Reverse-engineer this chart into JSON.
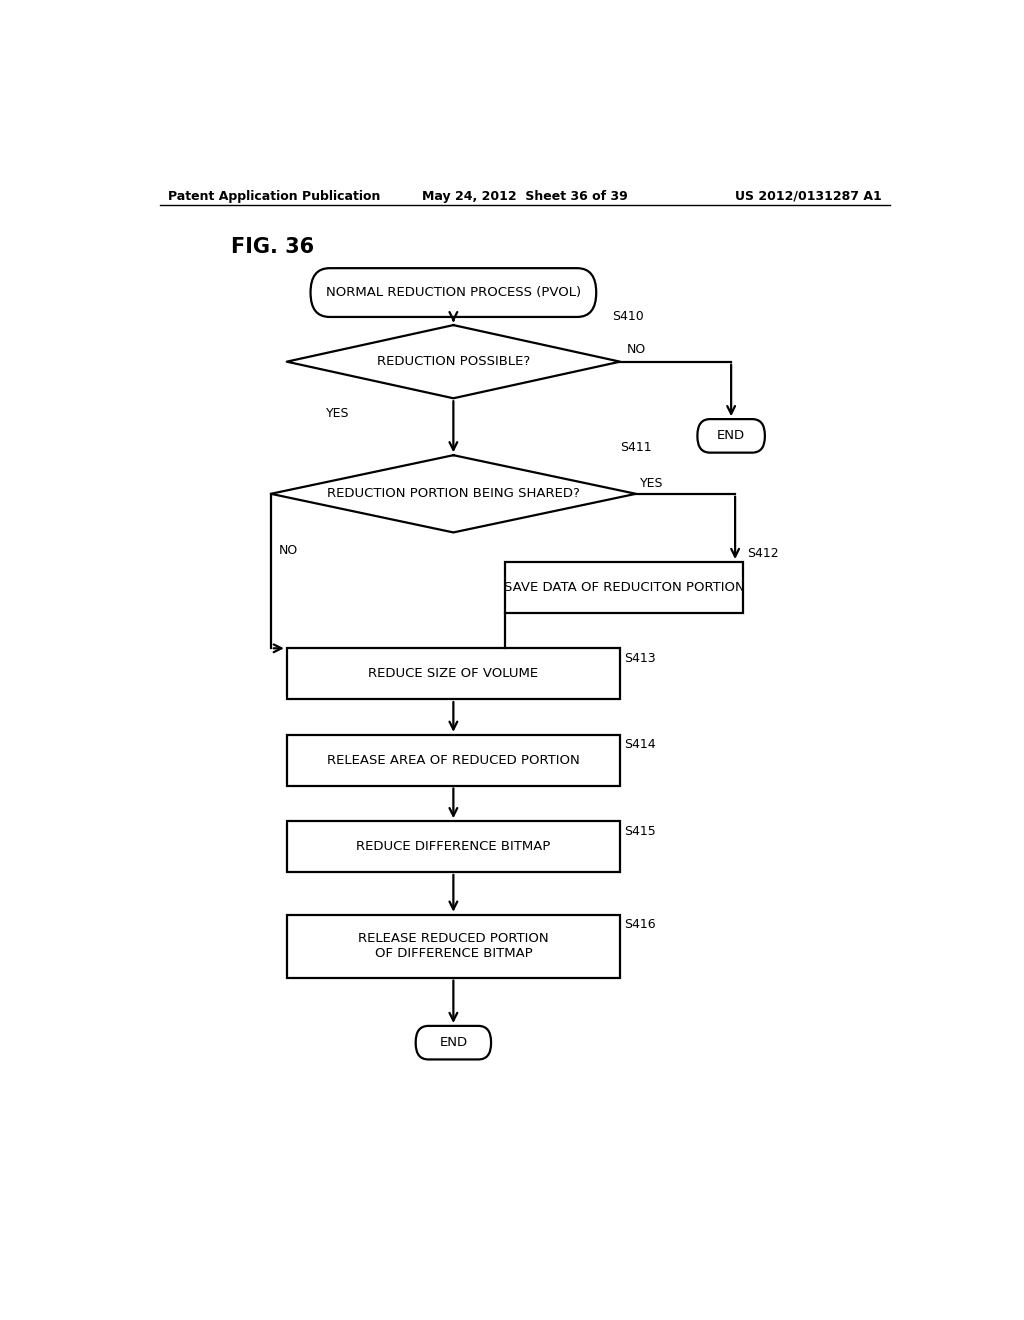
{
  "header_left": "Patent Application Publication",
  "header_center": "May 24, 2012  Sheet 36 of 39",
  "header_right": "US 2012/0131287 A1",
  "fig_label": "FIG. 36",
  "bg_color": "#ffffff",
  "line_color": "#000000",
  "text_color": "#000000",
  "lw": 1.6,
  "start_label": "NORMAL REDUCTION PROCESS (PVOL)",
  "d410_label": "REDUCTION POSSIBLE?",
  "d410_step": "S410",
  "end1_label": "END",
  "d411_label": "REDUCTION PORTION BEING SHARED?",
  "d411_step": "S411",
  "s412_label": "SAVE DATA OF REDUCITON PORTION",
  "s412_step": "S412",
  "s413_label": "REDUCE SIZE OF VOLUME",
  "s413_step": "S413",
  "s414_label": "RELEASE AREA OF REDUCED PORTION",
  "s414_step": "S414",
  "s415_label": "REDUCE DIFFERENCE BITMAP",
  "s415_step": "S415",
  "s416_label": "RELEASE REDUCED PORTION\nOF DIFFERENCE BITMAP",
  "s416_step": "S416",
  "end2_label": "END"
}
